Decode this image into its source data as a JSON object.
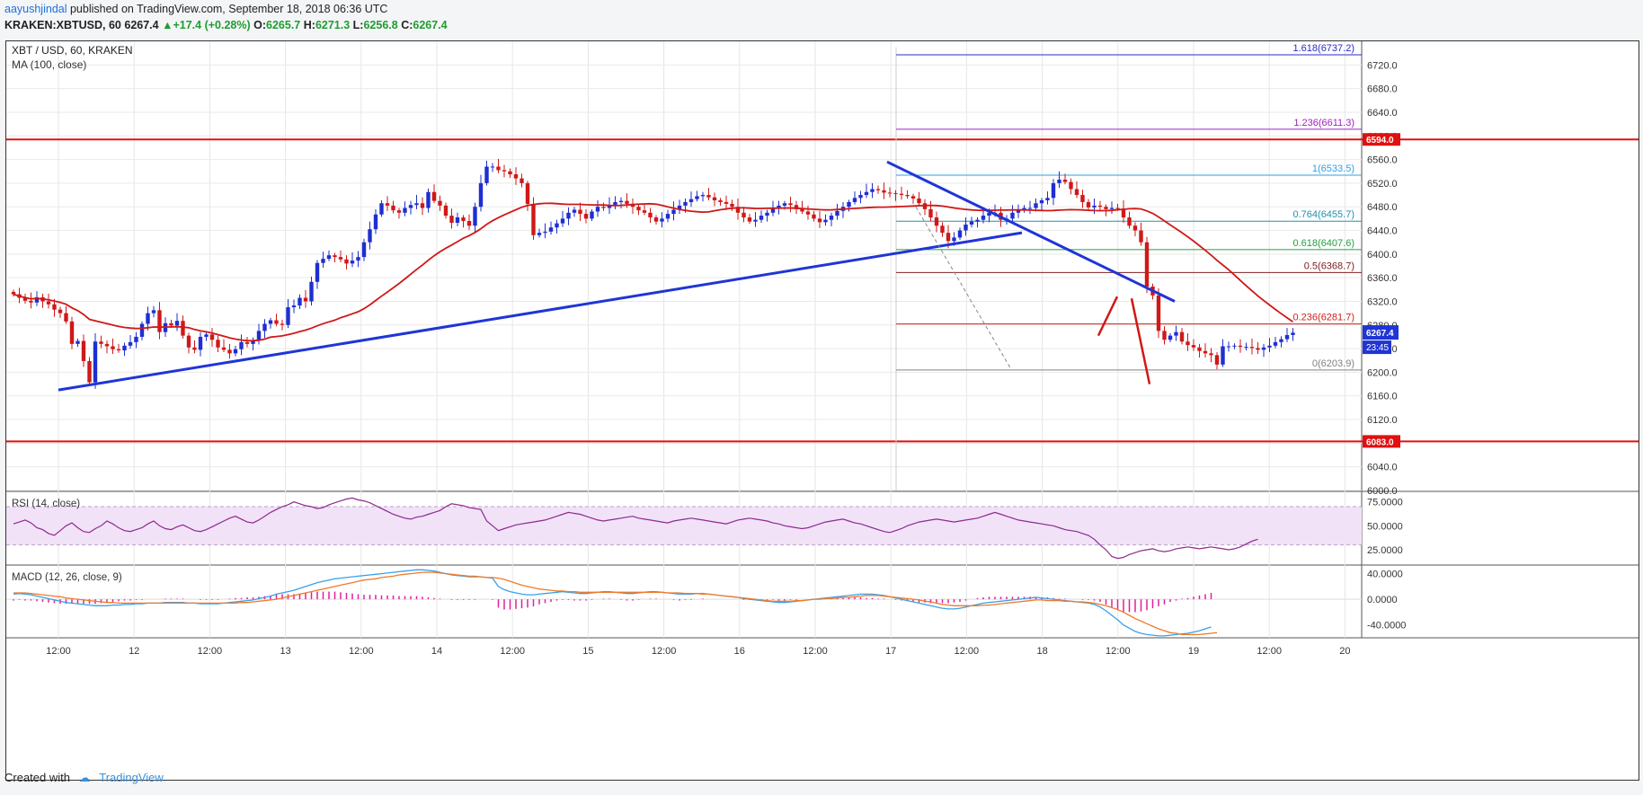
{
  "header": {
    "author": "aayushjindal",
    "published_text": "published on TradingView.com, September 18, 2018 06:36 UTC",
    "symbol": "KRAKEN:XBTUSD, 60",
    "last": "6267.4",
    "change": "+17.4 (+0.28%)",
    "o_label": "O:",
    "open": "6265.7",
    "h_label": "H:",
    "high": "6271.3",
    "l_label": "L:",
    "low": "6256.8",
    "c_label": "C:",
    "close": "6267.4"
  },
  "footer": {
    "created_with": "Created with",
    "brand": "TradingView"
  },
  "colors": {
    "up": "#1e2fd0",
    "down": "#d01818",
    "ma": "#d01818",
    "trend": "#1f35d6",
    "level": "#e01010",
    "rsi": "#8e2a8e",
    "macd": "#3aa0e8",
    "signal": "#f07a28",
    "hist": "#e0209a"
  },
  "chart_data": [
    {
      "type": "candlestick",
      "title": "XBT / USD, 60, KRAKEN",
      "indicator_label": "MA (100, close)",
      "ylim": [
        6000,
        6760
      ],
      "y_ticks": [
        "6000.0",
        "6040.0",
        "6080.0",
        "6120.0",
        "6160.0",
        "6200.0",
        "6240.0",
        "6280.0",
        "6320.0",
        "6360.0",
        "6400.0",
        "6440.0",
        "6480.0",
        "6520.0",
        "6560.0",
        "6600.0",
        "6640.0",
        "6680.0",
        "6720.0"
      ],
      "x_ticks": [
        "12:00",
        "12",
        "12:00",
        "13",
        "12:00",
        "14",
        "12:00",
        "15",
        "12:00",
        "16",
        "12:00",
        "17",
        "12:00",
        "18",
        "12:00",
        "19",
        "12:00",
        "20"
      ],
      "last_price_badge": "6267.4",
      "countdown_badge": "23:45",
      "horizontal_levels": [
        {
          "value": 6594.0,
          "label": "6594.0"
        },
        {
          "value": 6083.0,
          "label": "6083.0"
        }
      ],
      "fibonacci": [
        {
          "ratio": "1.618",
          "value": "6737.2",
          "color": "#2a2ac8"
        },
        {
          "ratio": "1.236",
          "value": "6611.3",
          "color": "#a020c0"
        },
        {
          "ratio": "1",
          "value": "6533.5",
          "color": "#30a0e0"
        },
        {
          "ratio": "0.764",
          "value": "6455.7",
          "color": "#2090b0"
        },
        {
          "ratio": "0.618",
          "value": "6407.6",
          "color": "#20a040"
        },
        {
          "ratio": "0.5",
          "value": "6368.7",
          "color": "#802020"
        },
        {
          "ratio": "0.236",
          "value": "6281.7",
          "color": "#d02020"
        },
        {
          "ratio": "0",
          "value": "6203.9",
          "color": "#808080"
        }
      ],
      "candles_close": [
        6332,
        6326,
        6321,
        6318,
        6327,
        6320,
        6315,
        6306,
        6300,
        6286,
        6248,
        6253,
        6219,
        6183,
        6252,
        6248,
        6244,
        6239,
        6237,
        6245,
        6251,
        6260,
        6282,
        6300,
        6305,
        6268,
        6283,
        6279,
        6287,
        6262,
        6242,
        6238,
        6260,
        6264,
        6255,
        6242,
        6238,
        6232,
        6239,
        6251,
        6248,
        6254,
        6270,
        6282,
        6288,
        6282,
        6280,
        6310,
        6313,
        6326,
        6320,
        6353,
        6385,
        6392,
        6398,
        6395,
        6391,
        6384,
        6389,
        6395,
        6420,
        6442,
        6467,
        6486,
        6482,
        6474,
        6470,
        6478,
        6483,
        6486,
        6478,
        6505,
        6490,
        6482,
        6465,
        6453,
        6462,
        6456,
        6448,
        6480,
        6520,
        6548,
        6548,
        6542,
        6540,
        6535,
        6528,
        6520,
        6485,
        6432,
        6436,
        6438,
        6445,
        6452,
        6460,
        6470,
        6475,
        6468,
        6460,
        6472,
        6480,
        6478,
        6482,
        6488,
        6490,
        6485,
        6480,
        6474,
        6470,
        6462,
        6455,
        6460,
        6468,
        6475,
        6482,
        6488,
        6493,
        6498,
        6500,
        6496,
        6491,
        6488,
        6485,
        6480,
        6470,
        6462,
        6455,
        6458,
        6465,
        6470,
        6478,
        6482,
        6486,
        6483,
        6476,
        6472,
        6467,
        6460,
        6454,
        6458,
        6465,
        6473,
        6480,
        6488,
        6495,
        6500,
        6505,
        6510,
        6508,
        6504,
        6503,
        6502,
        6500,
        6498,
        6494,
        6486,
        6476,
        6462,
        6448,
        6436,
        6422,
        6428,
        6440,
        6450,
        6455,
        6458,
        6465,
        6470,
        6470,
        6458,
        6460,
        6470,
        6475,
        6478,
        6478,
        6486,
        6491,
        6495,
        6520,
        6526,
        6522,
        6510,
        6500,
        6488,
        6479,
        6482,
        6480,
        6476,
        6478,
        6477,
        6462,
        6448,
        6440,
        6420,
        6345,
        6330,
        6270,
        6255,
        6262,
        6268,
        6252,
        6246,
        6242,
        6236,
        6232,
        6229,
        6213,
        6244,
        6244,
        6245,
        6243,
        6243,
        6241,
        6238,
        6242,
        6245,
        6251,
        6256,
        6263,
        6267
      ],
      "ma100_label": "MA (100, close)",
      "trendlines": [
        "support 6170 → 6436",
        "resistance 6556 → 6320"
      ],
      "forecast": "short bounce to ~6330 then drop to ~6180"
    },
    {
      "type": "line",
      "title": "RSI (14, close)",
      "ylim": [
        10,
        85
      ],
      "y_ticks": [
        "25.0000",
        "50.0000",
        "75.0000"
      ],
      "bands": [
        30,
        70
      ],
      "values": [
        52,
        54,
        56,
        53,
        48,
        46,
        42,
        40,
        45,
        50,
        53,
        48,
        44,
        43,
        47,
        50,
        55,
        52,
        48,
        45,
        44,
        46,
        48,
        52,
        55,
        50,
        47,
        46,
        49,
        51,
        48,
        45,
        44,
        46,
        49,
        52,
        55,
        58,
        60,
        57,
        54,
        53,
        56,
        60,
        64,
        67,
        70,
        72,
        75,
        73,
        71,
        70,
        68,
        69,
        72,
        74,
        76,
        78,
        79,
        77,
        76,
        74,
        71,
        68,
        65,
        62,
        60,
        58,
        57,
        59,
        60,
        62,
        64,
        66,
        70,
        73,
        72,
        71,
        69,
        68,
        67,
        55,
        50,
        45,
        47,
        49,
        51,
        52,
        53,
        54,
        55,
        56,
        58,
        60,
        62,
        64,
        63,
        62,
        60,
        58,
        56,
        55,
        56,
        57,
        58,
        59,
        60,
        58,
        57,
        56,
        55,
        54,
        53,
        55,
        56,
        57,
        58,
        57,
        56,
        55,
        54,
        53,
        52,
        54,
        56,
        57,
        58,
        57,
        56,
        55,
        53,
        52,
        50,
        49,
        48,
        47,
        48,
        50,
        52,
        54,
        55,
        56,
        57,
        55,
        53,
        52,
        50,
        48,
        46,
        44,
        43,
        45,
        47,
        50,
        52,
        54,
        55,
        56,
        57,
        56,
        55,
        54,
        55,
        56,
        57,
        58,
        60,
        62,
        64,
        62,
        60,
        58,
        56,
        55,
        54,
        53,
        52,
        51,
        50,
        48,
        46,
        45,
        44,
        42,
        40,
        36,
        30,
        25,
        18,
        16,
        17,
        20,
        22,
        24,
        25,
        26,
        24,
        23,
        24,
        26,
        27,
        28,
        27,
        26,
        27,
        28,
        27,
        26,
        25,
        26,
        28,
        31,
        34,
        36
      ],
      "ref_lines": [
        30,
        70
      ]
    },
    {
      "type": "line",
      "title": "MACD (12, 26, close, 9)",
      "ylim": [
        -60,
        52
      ],
      "y_ticks": [
        "40.0000",
        "0.0000",
        "-40.0000"
      ],
      "series": [
        {
          "name": "macd",
          "values": [
            8,
            9,
            8,
            7,
            5,
            3,
            1,
            -1,
            -3,
            -5,
            -6,
            -7,
            -8,
            -9,
            -10,
            -10,
            -10,
            -9,
            -9,
            -8,
            -8,
            -7,
            -7,
            -6,
            -6,
            -6,
            -5,
            -5,
            -5,
            -5,
            -6,
            -6,
            -7,
            -7,
            -7,
            -7,
            -6,
            -5,
            -4,
            -3,
            -2,
            -1,
            1,
            3,
            5,
            8,
            10,
            12,
            14,
            17,
            20,
            23,
            26,
            28,
            30,
            32,
            33,
            34,
            35,
            36,
            37,
            38,
            39,
            40,
            41,
            42,
            43,
            44,
            45,
            46,
            46,
            45,
            44,
            42,
            40,
            38,
            37,
            36,
            35,
            35,
            35,
            34,
            33,
            20,
            15,
            12,
            10,
            8,
            7,
            7,
            8,
            9,
            10,
            11,
            12,
            11,
            10,
            9,
            9,
            10,
            11,
            12,
            12,
            11,
            10,
            9,
            9,
            10,
            11,
            12,
            12,
            11,
            10,
            9,
            8,
            8,
            8,
            9,
            9,
            8,
            7,
            6,
            5,
            4,
            3,
            1,
            0,
            -1,
            -2,
            -3,
            -4,
            -5,
            -5,
            -4,
            -3,
            -2,
            -1,
            0,
            1,
            2,
            3,
            4,
            5,
            6,
            7,
            8,
            8,
            8,
            7,
            6,
            4,
            2,
            0,
            -2,
            -4,
            -6,
            -8,
            -10,
            -12,
            -14,
            -15,
            -15,
            -14,
            -12,
            -10,
            -8,
            -6,
            -5,
            -4,
            -3,
            -2,
            -1,
            0,
            1,
            2,
            3,
            2,
            1,
            0,
            -1,
            -2,
            -3,
            -4,
            -5,
            -6,
            -8,
            -12,
            -18,
            -25,
            -32,
            -40,
            -45,
            -50,
            -53,
            -55,
            -56,
            -57,
            -57,
            -56,
            -55,
            -54,
            -53,
            -51,
            -49,
            -46,
            -43
          ]
        },
        {
          "name": "signal",
          "values": [
            10,
            10,
            10,
            9,
            8,
            7,
            6,
            5,
            4,
            2,
            1,
            0,
            -1,
            -2,
            -3,
            -4,
            -5,
            -5,
            -6,
            -6,
            -6,
            -6,
            -6,
            -6,
            -6,
            -6,
            -6,
            -6,
            -6,
            -6,
            -6,
            -6,
            -6,
            -6,
            -6,
            -6,
            -6,
            -6,
            -6,
            -5,
            -5,
            -4,
            -3,
            -2,
            -1,
            0,
            2,
            4,
            6,
            8,
            10,
            12,
            14,
            16,
            18,
            20,
            22,
            24,
            26,
            28,
            30,
            31,
            32,
            34,
            35,
            36,
            38,
            39,
            40,
            41,
            42,
            42,
            42,
            41,
            40,
            39,
            38,
            37,
            36,
            36,
            35,
            34,
            34,
            33,
            31,
            28,
            25,
            22,
            20,
            18,
            16,
            15,
            14,
            13,
            13,
            12,
            12,
            11,
            11,
            11,
            11,
            11,
            11,
            11,
            11,
            11,
            11,
            11,
            11,
            11,
            11,
            11,
            10,
            10,
            10,
            9,
            9,
            9,
            8,
            8,
            7,
            6,
            5,
            4,
            3,
            2,
            1,
            0,
            -1,
            -2,
            -3,
            -3,
            -3,
            -3,
            -2,
            -2,
            -1,
            0,
            0,
            1,
            1,
            2,
            3,
            3,
            4,
            5,
            6,
            6,
            6,
            5,
            4,
            3,
            2,
            1,
            0,
            -1,
            -3,
            -4,
            -6,
            -8,
            -9,
            -10,
            -10,
            -10,
            -10,
            -10,
            -9,
            -9,
            -8,
            -7,
            -6,
            -5,
            -4,
            -3,
            -2,
            -1,
            -1,
            -2,
            -2,
            -2,
            -3,
            -3,
            -4,
            -4,
            -5,
            -6,
            -8,
            -10,
            -13,
            -16,
            -20,
            -25,
            -30,
            -34,
            -38,
            -42,
            -46,
            -49,
            -52,
            -53,
            -55,
            -55,
            -55,
            -55,
            -54,
            -53,
            -52
          ]
        }
      ],
      "histogram_series": "macd minus signal"
    }
  ]
}
